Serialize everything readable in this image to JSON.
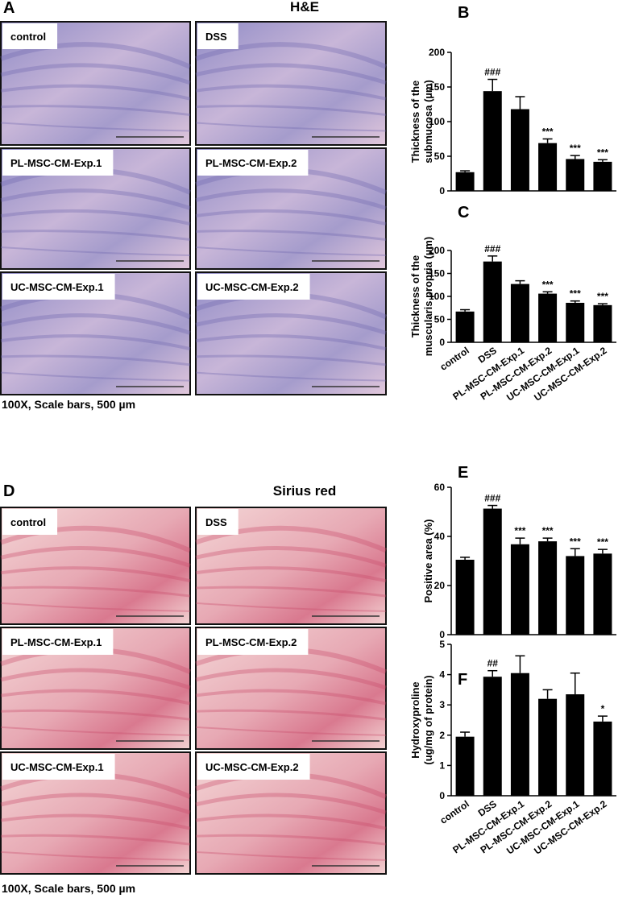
{
  "figure": {
    "he": {
      "label": "A",
      "title": "H&E",
      "images": [
        "control",
        "DSS",
        "PL-MSC-CM-Exp.1",
        "PL-MSC-CM-Exp.2",
        "UC-MSC-CM-Exp.1",
        "UC-MSC-CM-Exp.2"
      ],
      "caption": "100X, Scale bars, 500 µm"
    },
    "sirius": {
      "label": "D",
      "title": "Sirius red",
      "images": [
        "control",
        "DSS",
        "PL-MSC-CM-Exp.1",
        "PL-MSC-CM-Exp.2",
        "UC-MSC-CM-Exp.1",
        "UC-MSC-CM-Exp.2"
      ],
      "caption": "100X, Scale bars, 500 µm"
    }
  },
  "chart_data": [
    {
      "type": "bar",
      "label": "B",
      "ylabel": [
        "Thickness of the",
        "submucosa (µm)"
      ],
      "categories": [
        null,
        null,
        null,
        null,
        null,
        null
      ],
      "values": [
        27,
        144,
        118,
        69,
        46,
        42
      ],
      "errors": [
        2,
        17,
        18,
        6,
        5,
        3
      ],
      "annotations": [
        null,
        "###",
        null,
        "***",
        "***",
        "***"
      ],
      "color": "#000000",
      "ylim": [
        0,
        200
      ],
      "yticks": [
        0,
        50,
        100,
        150,
        200
      ]
    },
    {
      "type": "bar",
      "label": "C",
      "ylabel": [
        "Thickness  of the",
        "muscularis propria  (µm)"
      ],
      "categories": [
        "control",
        "DSS",
        "PL-MSC-CM-Exp.1",
        "PL-MSC-CM-Exp.2",
        "UC-MSC-CM-Exp.1",
        "UC-MSC-CM-Exp.2"
      ],
      "values": [
        67,
        176,
        127,
        106,
        86,
        81
      ],
      "errors": [
        4,
        12,
        7,
        4,
        4,
        3
      ],
      "annotations": [
        null,
        "###",
        null,
        "***",
        "***",
        "***"
      ],
      "color": "#000000",
      "ylim": [
        0,
        200
      ],
      "yticks": [
        0,
        50,
        100,
        150,
        200
      ]
    },
    {
      "type": "bar",
      "label": "E",
      "ylabel": [
        "Positive area (%)"
      ],
      "categories": [
        null,
        null,
        null,
        null,
        null,
        null
      ],
      "values": [
        30.5,
        51.3,
        36.8,
        38,
        32,
        33
      ],
      "errors": [
        1,
        1.3,
        2.5,
        1.3,
        3,
        1.7
      ],
      "annotations": [
        null,
        "###",
        "***",
        "***",
        "***",
        "***"
      ],
      "color": "#000000",
      "ylim": [
        0,
        60
      ],
      "yticks": [
        0,
        20,
        40,
        60
      ]
    },
    {
      "type": "bar",
      "label": "F",
      "ylabel": [
        "Hydroxyproline",
        "(ug/mg of protein)"
      ],
      "categories": [
        "control",
        "DSS",
        "PL-MSC-CM-Exp.1",
        "PL-MSC-CM-Exp.2",
        "UC-MSC-CM-Exp.1",
        "UC-MSC-CM-Exp.2"
      ],
      "values": [
        1.95,
        3.93,
        4.05,
        3.2,
        3.35,
        2.45
      ],
      "errors": [
        0.15,
        0.2,
        0.57,
        0.3,
        0.7,
        0.18
      ],
      "annotations": [
        null,
        "##",
        null,
        null,
        null,
        "*"
      ],
      "color": "#000000",
      "ylim": [
        0,
        5
      ],
      "yticks": [
        0,
        1,
        2,
        3,
        4,
        5
      ]
    }
  ]
}
